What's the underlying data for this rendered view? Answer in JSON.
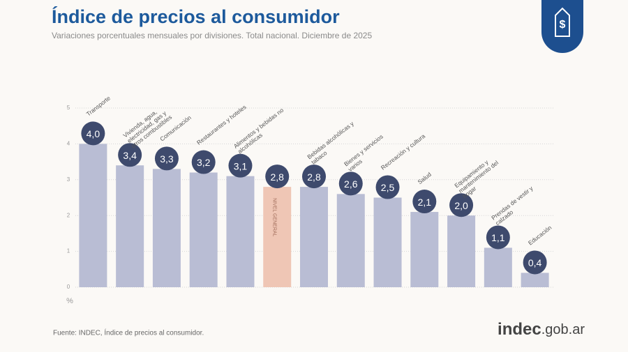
{
  "chart_data": {
    "type": "bar",
    "title": "Índice de precios al consumidor",
    "subtitle": "Variaciones porcentuales mensuales por divisiones. Total nacional. Diciembre de 2025",
    "y_label": "%",
    "source": "Fuente: INDEC, Índice de precios al consumidor.",
    "brand": "indec",
    "brand_domain": ".gob.ar",
    "categories": [
      "Transporte",
      "Vivienda, agua, electricidad, gas y otros combustibles",
      "Comunicación",
      "Restaurantes y hoteles",
      "Alimentos y bebidas no alcohólicas",
      "NIVEL GENERAL",
      "Bebidas alcohólicas y tabaco",
      "Bienes y servicios varios",
      "Recreación y cultura",
      "Salud",
      "Equipamiento y mantenimiento del hogar",
      "Prendas de vestir y calzado",
      "Educación"
    ],
    "values": [
      4.0,
      3.4,
      3.3,
      3.2,
      3.1,
      2.8,
      2.8,
      2.6,
      2.5,
      2.1,
      2.0,
      1.1,
      0.4
    ],
    "value_labels": [
      "4,0",
      "3,4",
      "3,3",
      "3,2",
      "3,1",
      "2,8",
      "2,8",
      "2,6",
      "2,5",
      "2,1",
      "2,0",
      "1,1",
      "0,4"
    ],
    "color": "#b9bdd4",
    "colors": [
      "#b9bdd4",
      "#b9bdd4",
      "#b9bdd4",
      "#b9bdd4",
      "#b9bdd4",
      "#efc6b5",
      "#b9bdd4",
      "#b9bdd4",
      "#b9bdd4",
      "#b9bdd4",
      "#b9bdd4",
      "#b9bdd4",
      "#b9bdd4"
    ],
    "badge_color": "#3e4a6d",
    "ylim": [
      0,
      5
    ],
    "yticks": [
      0,
      1,
      2,
      3,
      4,
      5
    ],
    "grid": true
  }
}
